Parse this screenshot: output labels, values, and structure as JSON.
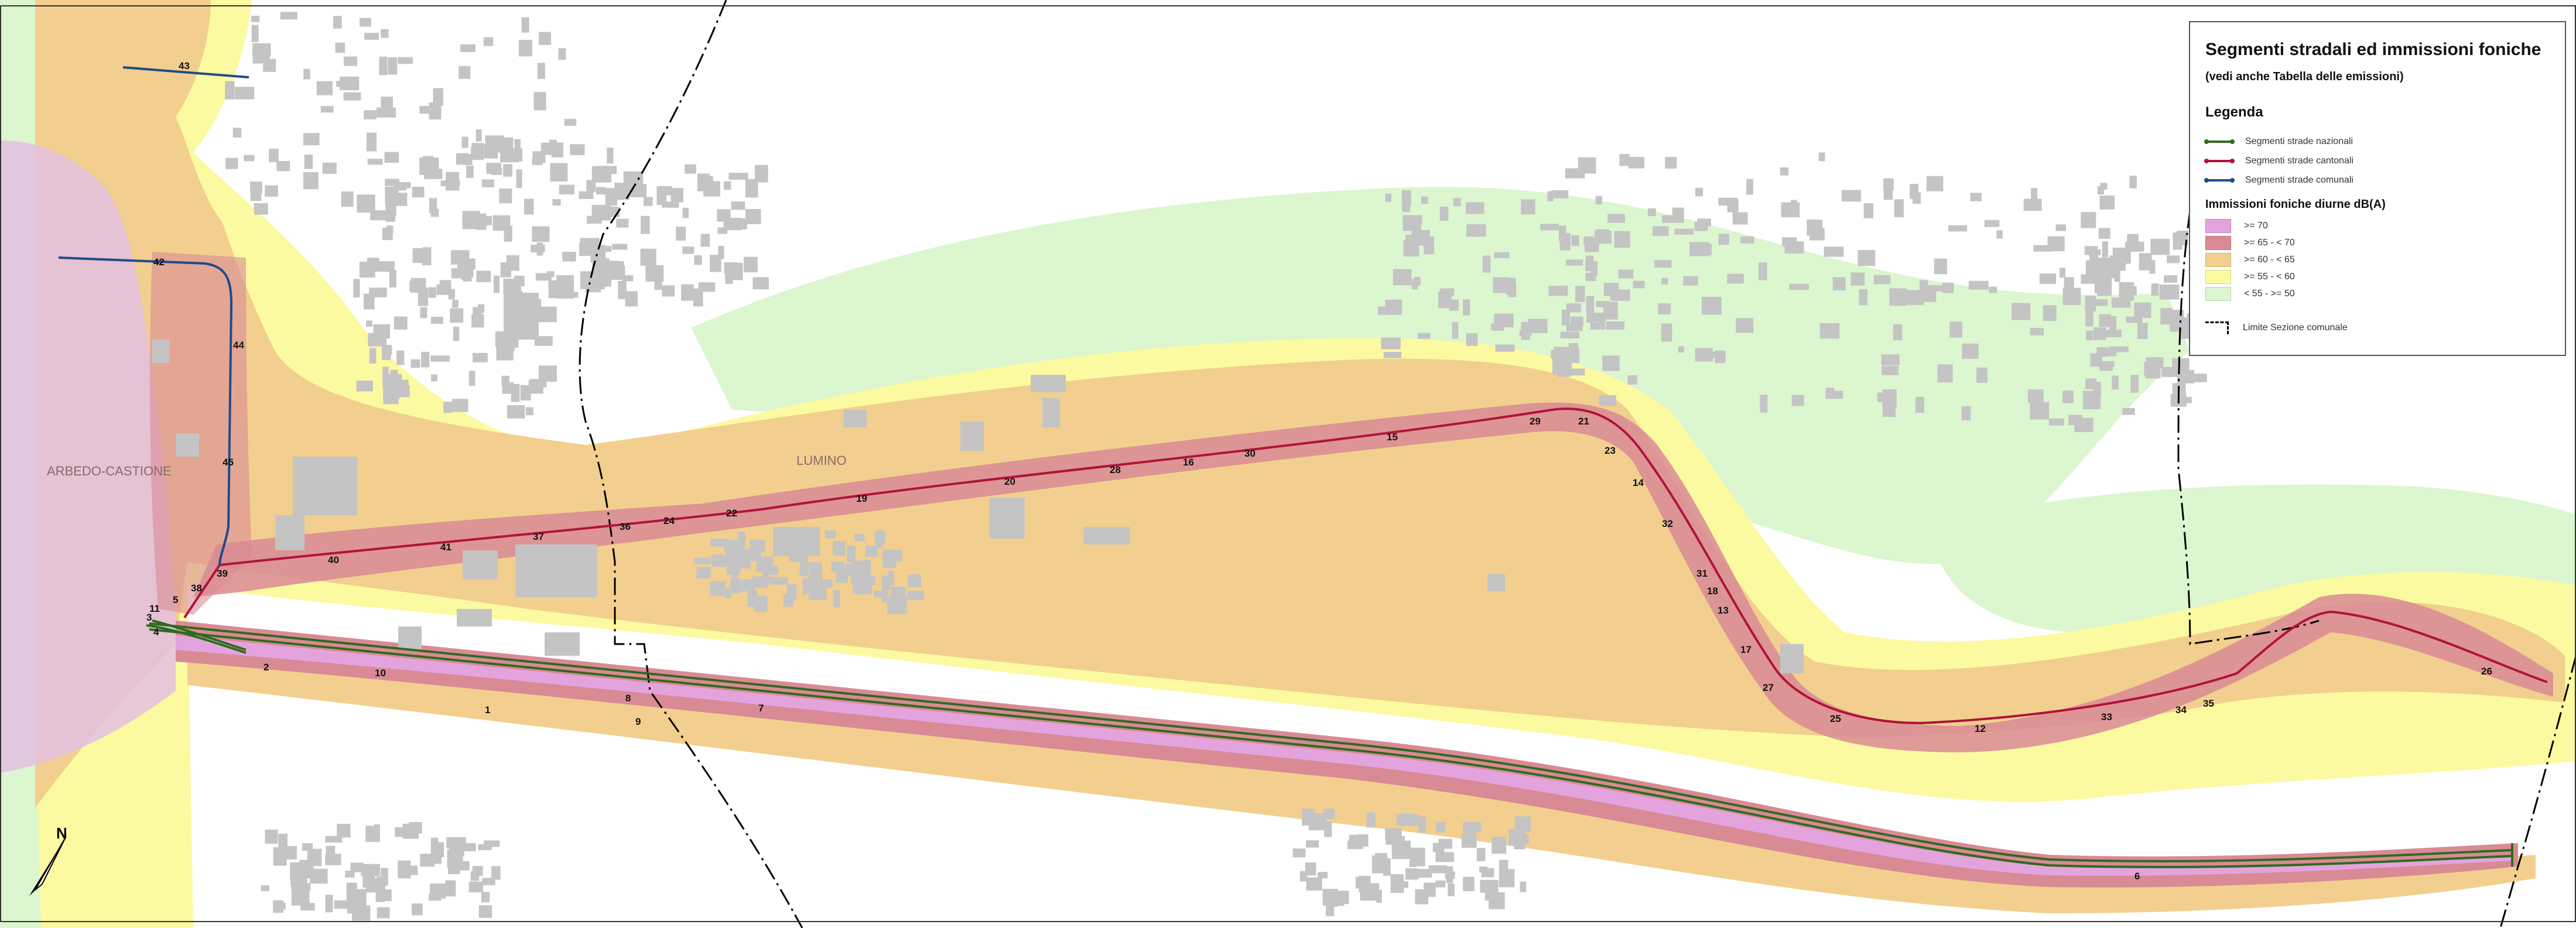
{
  "colors": {
    "zone_70": "#e3a3dd",
    "zone_65": "#d98a95",
    "zone_60": "#f2cf8e",
    "zone_55": "#fcfaa0",
    "zone_50": "#dcf6cf",
    "road_national": "#2e6b1f",
    "road_cantonal": "#b0123a",
    "road_communal": "#1f4b8a",
    "building": "#c4c4c4",
    "boundary": "#000000"
  },
  "legend": {
    "title": "Segmenti stradali ed immissioni foniche",
    "subtitle": "(vedi anche Tabella delle emissioni)",
    "legend_heading": "Legenda",
    "roads": [
      {
        "label": "Segmenti strade nazionali",
        "color": "#2e6b1f"
      },
      {
        "label": "Segmenti strade cantonali",
        "color": "#b0123a"
      },
      {
        "label": "Segmenti strade comunali",
        "color": "#1f4b8a"
      }
    ],
    "immission_heading": "Immissioni foniche diurne dB(A)",
    "zones": [
      {
        "label": ">= 70",
        "color": "#e3a3dd"
      },
      {
        "label": ">= 65  -  < 70",
        "color": "#d98a95"
      },
      {
        "label": ">= 60  -  < 65",
        "color": "#f2cf8e"
      },
      {
        "label": ">= 55  -  < 60",
        "color": "#fcfaa0"
      },
      {
        "label": "< 55  -  >= 50",
        "color": "#dcf6cf"
      }
    ],
    "boundary_label": "Limite Sezione comunale"
  },
  "places": {
    "arbedo": "ARBEDO-CASTIONE",
    "lumino": "LUMINO"
  },
  "segments": {
    "national": [
      "11",
      "3",
      "4",
      "2",
      "10",
      "1",
      "8",
      "9",
      "7",
      "6"
    ],
    "cantonal": [
      "39",
      "40",
      "41",
      "37",
      "36",
      "24",
      "22",
      "19",
      "20",
      "28",
      "16",
      "30",
      "15",
      "29",
      "21",
      "23",
      "14",
      "32",
      "31",
      "18",
      "13",
      "17",
      "27",
      "25",
      "12",
      "33",
      "34",
      "35",
      "26"
    ],
    "communal": [
      "43",
      "42",
      "44",
      "45",
      "38",
      "5"
    ]
  },
  "north": "N"
}
